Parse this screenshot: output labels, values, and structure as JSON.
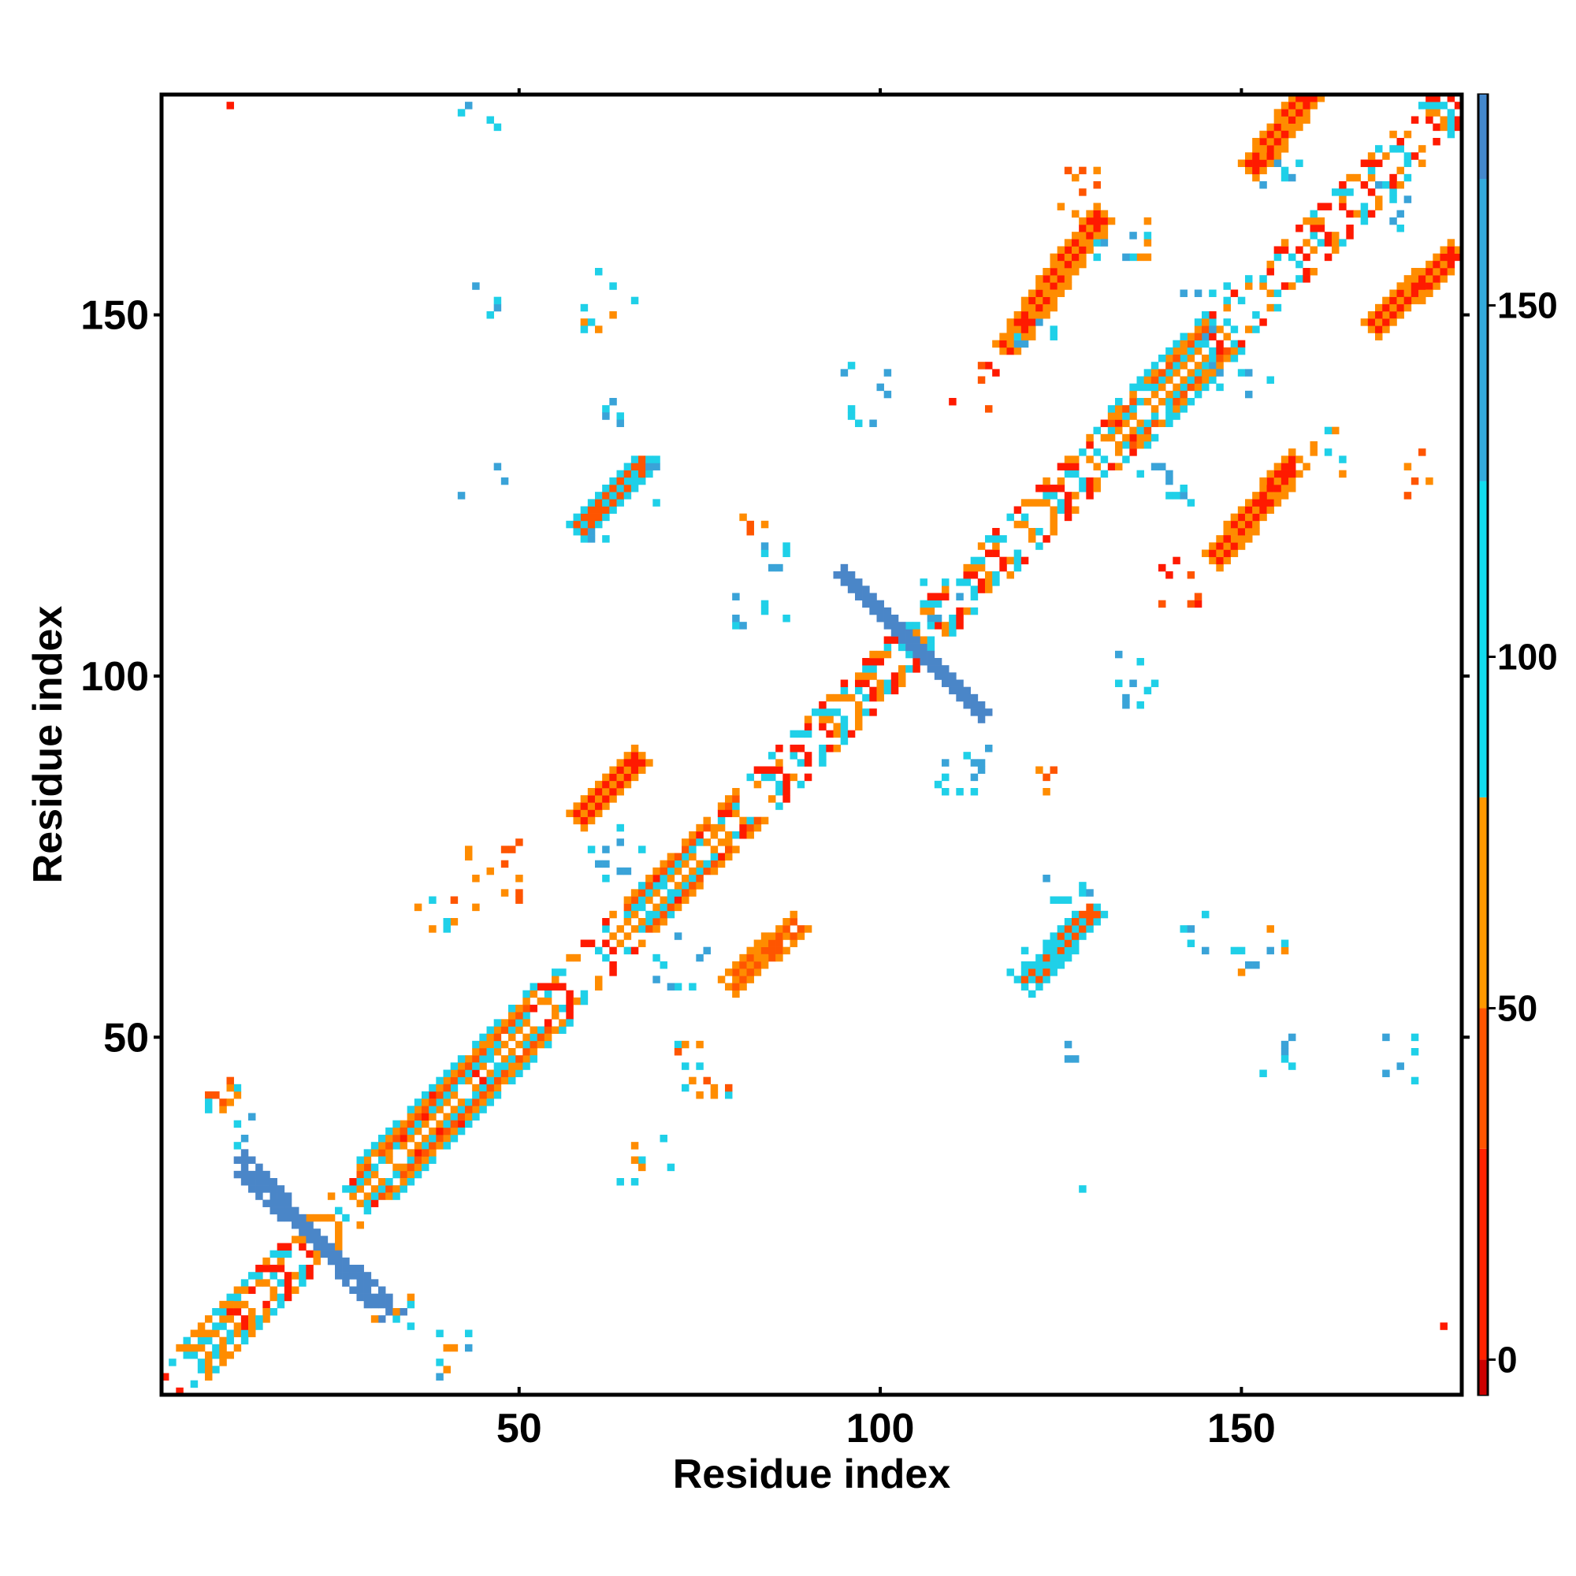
{
  "chart_data": {
    "type": "heatmap",
    "title": "",
    "xlabel": "Residue index",
    "ylabel": "Residue index",
    "xlim": [
      0.5,
      180.5
    ],
    "ylim": [
      0.5,
      180.5
    ],
    "x_ticks": [
      50,
      100,
      150
    ],
    "y_ticks": [
      50,
      100,
      150
    ],
    "grid": false,
    "colorbar": {
      "ticks": [
        0,
        50,
        100,
        150
      ],
      "range": [
        -5,
        180
      ],
      "bands": [
        {
          "from": -5,
          "to": 0,
          "color": "#cc0000"
        },
        {
          "from": 0,
          "to": 30,
          "color": "#ff2200"
        },
        {
          "from": 30,
          "to": 50,
          "color": "#ff5500"
        },
        {
          "from": 50,
          "to": 80,
          "color": "#ff9900"
        },
        {
          "from": 80,
          "to": 125,
          "color": "#11ddee"
        },
        {
          "from": 125,
          "to": 168,
          "color": "#33aadd"
        },
        {
          "from": 168,
          "to": 180,
          "color": "#4488cc"
        }
      ]
    },
    "palette": [
      "#ff1a00",
      "#ff5500",
      "#ff8c00",
      "#1fd0e8",
      "#3aa3d8",
      "#4a86c8"
    ],
    "diagonal_band": {
      "from": 1,
      "to": 180,
      "halfwidth": 4,
      "pattern": "alternating contacts",
      "colors": [
        "#ff1a00",
        "#ff8c00",
        "#1fd0e8"
      ]
    },
    "diagonal_cluster_regions": [
      {
        "start": 28,
        "end": 52,
        "halfwidth": 5,
        "colors": [
          "#ff5500",
          "#ff8c00",
          "#1fd0e8"
        ]
      },
      {
        "start": 64,
        "end": 80,
        "halfwidth": 4,
        "colors": [
          "#ff5500",
          "#ff8c00",
          "#1fd0e8"
        ]
      },
      {
        "start": 132,
        "end": 145,
        "halfwidth": 5,
        "colors": [
          "#ff5500",
          "#ff8c00",
          "#1fd0e8"
        ]
      },
      {
        "start": 4,
        "end": 12,
        "halfwidth": 4,
        "colors": [
          "#1fd0e8",
          "#ff8c00"
        ]
      }
    ],
    "antidiagonal_segments": [
      {
        "x1": 12,
        "y1": 33,
        "x2": 31,
        "y2": 12,
        "halfwidth": 1.3,
        "color": "#4a86c8",
        "edge_color": "#1fd0e8"
      },
      {
        "x1": 95,
        "y1": 114,
        "x2": 114,
        "y2": 95,
        "halfwidth": 1.3,
        "color": "#4a86c8",
        "edge_color": "#1fd0e8"
      }
    ],
    "parallel_strands": [
      {
        "x1": 59,
        "y1": 81,
        "x2": 66,
        "y2": 88,
        "halfwidth": 1.7,
        "color": "#ff1a00",
        "edge_color": "#ff8c00"
      },
      {
        "x1": 59,
        "y1": 121,
        "x2": 67,
        "y2": 129,
        "halfwidth": 1.6,
        "color": "#ff5500",
        "edge_color": "#1fd0e8"
      },
      {
        "x1": 118,
        "y1": 146,
        "x2": 130,
        "y2": 163,
        "halfwidth": 1.8,
        "color": "#ff1a00",
        "edge_color": "#ff8c00"
      },
      {
        "x1": 152,
        "y1": 171,
        "x2": 159,
        "y2": 180,
        "halfwidth": 1.6,
        "color": "#ff1a00",
        "edge_color": "#ff8c00"
      },
      {
        "x1": 147,
        "y1": 117,
        "x2": 157,
        "y2": 129,
        "halfwidth": 1.8,
        "color": "#ff1a00",
        "edge_color": "#ff8c00"
      },
      {
        "x1": 169,
        "y1": 149,
        "x2": 179,
        "y2": 158,
        "halfwidth": 1.6,
        "color": "#ff1a00",
        "edge_color": "#ff8c00"
      },
      {
        "x1": 80,
        "y1": 58,
        "x2": 88,
        "y2": 65,
        "halfwidth": 1.6,
        "color": "#ff5500",
        "edge_color": "#ff8c00"
      },
      {
        "x1": 121,
        "y1": 58,
        "x2": 129,
        "y2": 67,
        "halfwidth": 1.6,
        "color": "#ff5500",
        "edge_color": "#1fd0e8"
      }
    ],
    "scattered_clusters": [
      {
        "cx": 44,
        "cy": 178,
        "spread": 3,
        "n": 5,
        "colors": [
          "#1fd0e8",
          "#3aa3d8"
        ]
      },
      {
        "cx": 46,
        "cy": 153,
        "spread": 3,
        "n": 4,
        "colors": [
          "#3aa3d8",
          "#1fd0e8"
        ]
      },
      {
        "cx": 60,
        "cy": 149,
        "spread": 3,
        "n": 6,
        "colors": [
          "#ff8c00",
          "#1fd0e8"
        ]
      },
      {
        "cx": 64,
        "cy": 153,
        "spread": 3,
        "n": 3,
        "colors": [
          "#1fd0e8"
        ]
      },
      {
        "cx": 62,
        "cy": 138,
        "spread": 3,
        "n": 5,
        "colors": [
          "#3aa3d8",
          "#1fd0e8"
        ]
      },
      {
        "cx": 68,
        "cy": 127,
        "spread": 3,
        "n": 8,
        "colors": [
          "#1fd0e8",
          "#3aa3d8"
        ]
      },
      {
        "cx": 61,
        "cy": 118,
        "spread": 2,
        "n": 4,
        "colors": [
          "#3aa3d8",
          "#1fd0e8"
        ]
      },
      {
        "cx": 45,
        "cy": 126,
        "spread": 3,
        "n": 3,
        "colors": [
          "#3aa3d8"
        ]
      },
      {
        "cx": 83,
        "cy": 121,
        "spread": 2,
        "n": 4,
        "colors": [
          "#ff8c00",
          "#ff5500"
        ]
      },
      {
        "cx": 85,
        "cy": 118,
        "spread": 4,
        "n": 6,
        "colors": [
          "#1fd0e8",
          "#3aa3d8"
        ]
      },
      {
        "cx": 98,
        "cy": 139,
        "spread": 4,
        "n": 10,
        "colors": [
          "#3aa3d8",
          "#1fd0e8"
        ]
      },
      {
        "cx": 113,
        "cy": 140,
        "spread": 3,
        "n": 8,
        "colors": [
          "#ff1a00",
          "#ff5500"
        ]
      },
      {
        "cx": 121,
        "cy": 146,
        "spread": 3,
        "n": 6,
        "colors": [
          "#3aa3d8",
          "#1fd0e8"
        ]
      },
      {
        "cx": 128,
        "cy": 167,
        "spread": 3,
        "n": 8,
        "colors": [
          "#ff8c00",
          "#ff5500"
        ]
      },
      {
        "cx": 133,
        "cy": 160,
        "spread": 4,
        "n": 12,
        "colors": [
          "#1fd0e8",
          "#ff8c00",
          "#3aa3d8"
        ]
      },
      {
        "cx": 145,
        "cy": 150,
        "spread": 4,
        "n": 8,
        "colors": [
          "#3aa3d8",
          "#1fd0e8"
        ]
      },
      {
        "cx": 150,
        "cy": 141,
        "spread": 4,
        "n": 8,
        "colors": [
          "#1fd0e8",
          "#3aa3d8"
        ]
      },
      {
        "cx": 155,
        "cy": 170,
        "spread": 3,
        "n": 6,
        "colors": [
          "#1fd0e8",
          "#3aa3d8"
        ]
      },
      {
        "cx": 171,
        "cy": 165,
        "spread": 3,
        "n": 8,
        "colors": [
          "#1fd0e8",
          "#3aa3d8"
        ]
      },
      {
        "cx": 176,
        "cy": 128,
        "spread": 3,
        "n": 6,
        "colors": [
          "#ff5500",
          "#ff8c00"
        ]
      },
      {
        "cx": 163,
        "cy": 131,
        "spread": 3,
        "n": 8,
        "colors": [
          "#ff8c00",
          "#1fd0e8"
        ]
      },
      {
        "cx": 140,
        "cy": 128,
        "spread": 4,
        "n": 12,
        "colors": [
          "#1fd0e8",
          "#3aa3d8"
        ]
      },
      {
        "cx": 140,
        "cy": 113,
        "spread": 4,
        "n": 8,
        "colors": [
          "#ff1a00",
          "#ff5500"
        ]
      },
      {
        "cx": 134,
        "cy": 99,
        "spread": 4,
        "n": 10,
        "colors": [
          "#3aa3d8",
          "#1fd0e8"
        ]
      },
      {
        "cx": 112,
        "cy": 87,
        "spread": 4,
        "n": 12,
        "colors": [
          "#1fd0e8",
          "#3aa3d8"
        ]
      },
      {
        "cx": 124,
        "cy": 85,
        "spread": 2,
        "n": 4,
        "colors": [
          "#ff8c00",
          "#ff5500"
        ]
      },
      {
        "cx": 126,
        "cy": 70,
        "spread": 3,
        "n": 10,
        "colors": [
          "#1fd0e8",
          "#3aa3d8"
        ]
      },
      {
        "cx": 121,
        "cy": 59,
        "spread": 3,
        "n": 6,
        "colors": [
          "#1fd0e8"
        ]
      },
      {
        "cx": 143,
        "cy": 63,
        "spread": 4,
        "n": 6,
        "colors": [
          "#3aa3d8",
          "#1fd0e8"
        ]
      },
      {
        "cx": 153,
        "cy": 62,
        "spread": 4,
        "n": 10,
        "colors": [
          "#ff8c00",
          "#1fd0e8",
          "#3aa3d8"
        ]
      },
      {
        "cx": 155,
        "cy": 48,
        "spread": 3,
        "n": 6,
        "colors": [
          "#3aa3d8",
          "#1fd0e8"
        ]
      },
      {
        "cx": 172,
        "cy": 47,
        "spread": 3,
        "n": 6,
        "colors": [
          "#3aa3d8",
          "#1fd0e8"
        ]
      },
      {
        "cx": 125,
        "cy": 49,
        "spread": 2,
        "n": 3,
        "colors": [
          "#3aa3d8"
        ]
      },
      {
        "cx": 127,
        "cy": 30,
        "spread": 1,
        "n": 1,
        "colors": [
          "#1fd0e8"
        ]
      },
      {
        "cx": 76,
        "cy": 46,
        "spread": 4,
        "n": 16,
        "colors": [
          "#ff8c00",
          "#ff5500",
          "#1fd0e8"
        ]
      },
      {
        "cx": 68,
        "cy": 34,
        "spread": 3,
        "n": 6,
        "colors": [
          "#1fd0e8",
          "#ff8c00"
        ]
      },
      {
        "cx": 65,
        "cy": 30,
        "spread": 1,
        "n": 2,
        "colors": [
          "#1fd0e8"
        ]
      },
      {
        "cx": 72,
        "cy": 60,
        "spread": 4,
        "n": 10,
        "colors": [
          "#1fd0e8",
          "#3aa3d8"
        ]
      },
      {
        "cx": 46,
        "cy": 72,
        "spread": 5,
        "n": 14,
        "colors": [
          "#ff8c00",
          "#ff5500"
        ]
      },
      {
        "cx": 38,
        "cy": 67,
        "spread": 3,
        "n": 6,
        "colors": [
          "#1fd0e8",
          "#ff8c00"
        ]
      },
      {
        "cx": 63,
        "cy": 76,
        "spread": 4,
        "n": 12,
        "colors": [
          "#1fd0e8",
          "#3aa3d8"
        ]
      },
      {
        "cx": 108,
        "cy": 110,
        "spread": 3,
        "n": 6,
        "colors": [
          "#1fd0e8",
          "#3aa3d8"
        ]
      },
      {
        "cx": 84,
        "cy": 109,
        "spread": 4,
        "n": 8,
        "colors": [
          "#1fd0e8",
          "#3aa3d8"
        ]
      },
      {
        "cx": 8,
        "cy": 42,
        "spread": 3,
        "n": 12,
        "colors": [
          "#ff8c00",
          "#1fd0e8",
          "#ff5500"
        ]
      },
      {
        "cx": 12,
        "cy": 37,
        "spread": 2,
        "n": 4,
        "colors": [
          "#1fd0e8",
          "#3aa3d8"
        ]
      },
      {
        "cx": 41,
        "cy": 6,
        "spread": 3,
        "n": 10,
        "colors": [
          "#ff8c00",
          "#1fd0e8",
          "#3aa3d8"
        ]
      },
      {
        "cx": 33,
        "cy": 12,
        "spread": 3,
        "n": 6,
        "colors": [
          "#1fd0e8",
          "#ff8c00"
        ]
      }
    ],
    "isolated_points": [
      {
        "x": 10,
        "y": 179,
        "color": "#ff1a00"
      },
      {
        "x": 178,
        "y": 10,
        "color": "#ff1a00"
      }
    ]
  }
}
